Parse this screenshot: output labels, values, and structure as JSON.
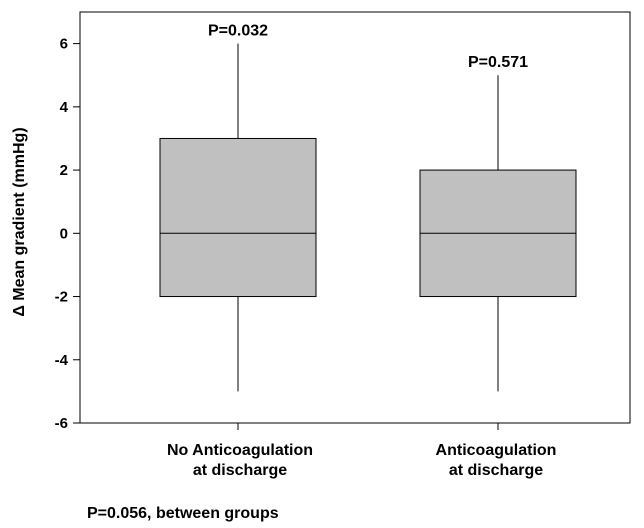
{
  "chart_data": {
    "type": "box",
    "ylabel": "Δ Mean gradient (mmHg)",
    "ylim": [
      -6,
      7
    ],
    "yticks": [
      -6,
      -4,
      -2,
      0,
      2,
      4,
      6
    ],
    "grid": false,
    "box_color": "#c0c0c0",
    "categories": [
      [
        "No Anticoagulation",
        "at discharge"
      ],
      [
        "Anticoagulation",
        "at discharge"
      ]
    ],
    "boxes": [
      {
        "min": -5,
        "q1": -2,
        "median": 0,
        "q3": 3,
        "max": 6,
        "annotation": "P=0.032"
      },
      {
        "min": -5,
        "q1": -2,
        "median": 0,
        "q3": 2,
        "max": 5,
        "annotation": "P=0.571"
      }
    ],
    "footnote": "P=0.056, between groups"
  }
}
